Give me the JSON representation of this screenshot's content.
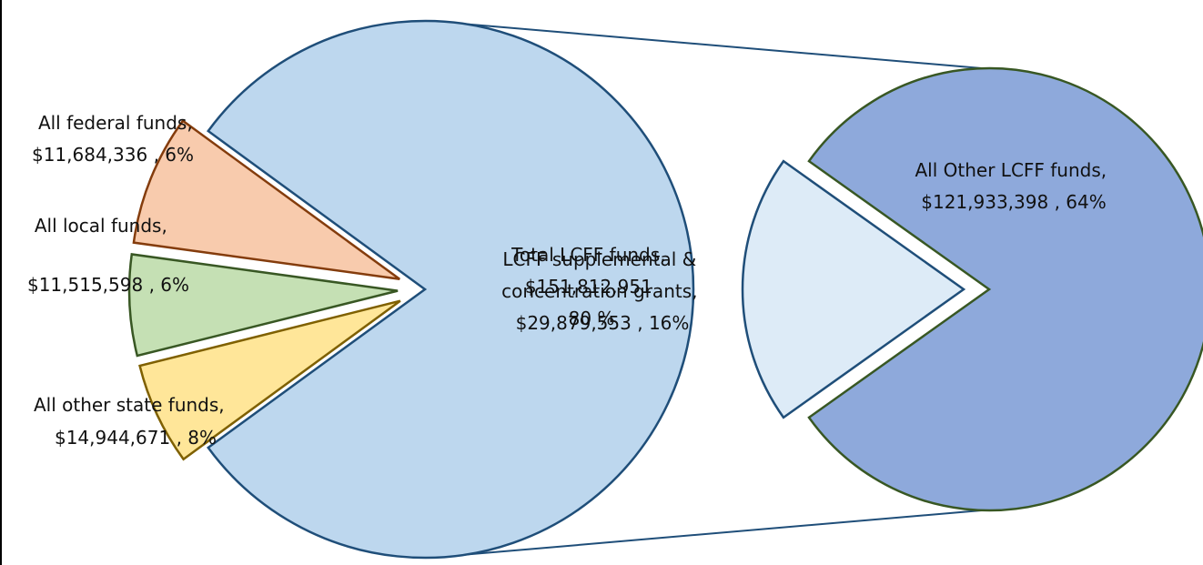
{
  "chart_data": {
    "type": "pie",
    "subtype": "pie-of-pie",
    "title": "",
    "primary": {
      "slices": [
        {
          "key": "federal",
          "label": "All federal funds",
          "value_text": "$11,684,336",
          "value": 11684336,
          "percent_text": "6%",
          "color": "#FFE699",
          "stroke": "#7F6000"
        },
        {
          "key": "local",
          "label": "All local funds",
          "value_text": "$11,515,598",
          "value": 11515598,
          "percent_text": "6%",
          "color": "#C5E0B4",
          "stroke": "#385723"
        },
        {
          "key": "state",
          "label": "All other state funds",
          "value_text": "$14,944,671",
          "value": 14944671,
          "percent_text": "8%",
          "color": "#F8CBAD",
          "stroke": "#843C0C"
        },
        {
          "key": "lcff_total",
          "label": "Total LCFF funds",
          "value_text": "$151,812,951",
          "value": 151812951,
          "percent_text": "80 %",
          "color": "#BDD7EE",
          "stroke": "#1F4E79"
        }
      ]
    },
    "secondary": {
      "slices": [
        {
          "key": "lcff_supp",
          "label": "LCFF supplemental & concentration grants",
          "label_line1": "LCFF supplemental &",
          "label_line2": "concentration grants,",
          "value_text": "$29,879,553",
          "value": 29879553,
          "percent_text": "16%",
          "color": "#DDEBF7",
          "stroke": "#1F4E79"
        },
        {
          "key": "lcff_other",
          "label": "All Other LCFF funds",
          "value_text": "$121,933,398",
          "value": 121933398,
          "percent_text": "64%",
          "color": "#8EA9DB",
          "stroke": "#385723"
        }
      ]
    },
    "connector_color": "#1F4E79"
  }
}
